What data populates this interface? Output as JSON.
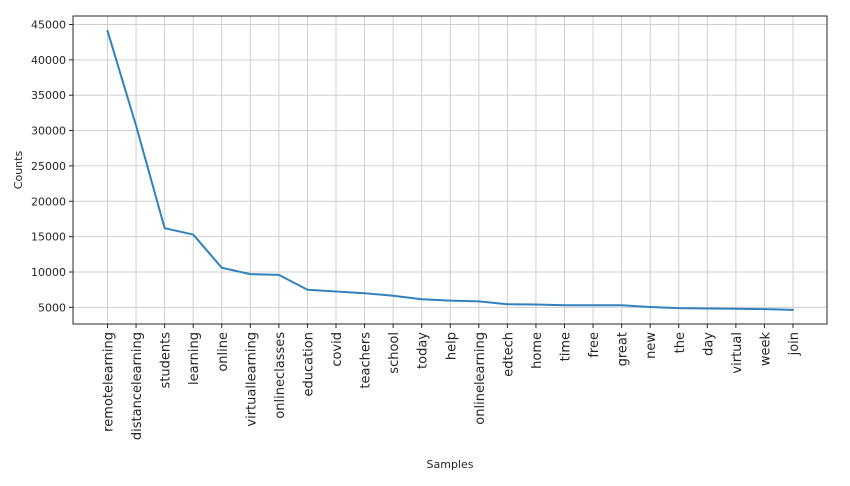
{
  "chart_data": {
    "type": "line",
    "xlabel": "Samples",
    "ylabel": "Counts",
    "categories": [
      "remotelearning",
      "distancelearning",
      "students",
      "learning",
      "online",
      "virtuallearning",
      "onlineclasses",
      "education",
      "covid",
      "teachers",
      "school",
      "today",
      "help",
      "onlinelearning",
      "edtech",
      "home",
      "time",
      "free",
      "great",
      "new",
      "the",
      "day",
      "virtual",
      "week",
      "join"
    ],
    "series": [
      {
        "values": [
          44100,
          30700,
          16200,
          15300,
          10600,
          9700,
          9600,
          7500,
          7250,
          7000,
          6650,
          6150,
          5950,
          5850,
          5450,
          5400,
          5300,
          5300,
          5300,
          5050,
          4900,
          4850,
          4800,
          4750,
          4650
        ],
        "color": "#3182bd"
      }
    ],
    "y_ticks": [
      5000,
      10000,
      15000,
      20000,
      25000,
      30000,
      35000,
      40000,
      45000
    ],
    "ylim": [
      2650,
      46200
    ],
    "grid": true
  }
}
